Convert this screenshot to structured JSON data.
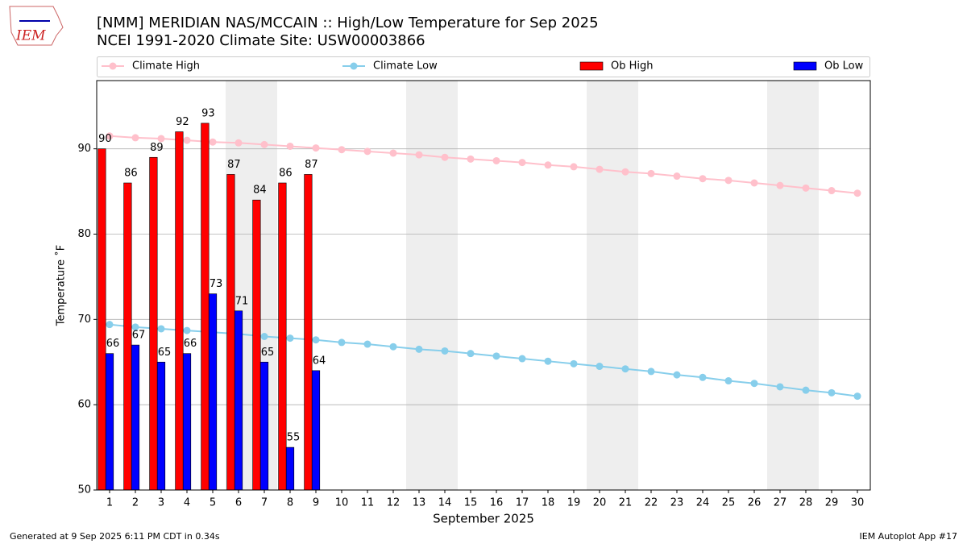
{
  "chart_data": {
    "type": "bar",
    "logo": "IEM",
    "title": "[NMM] MERIDIAN NAS/MCCAIN :: High/Low Temperature for Sep 2025",
    "subtitle": "NCEI 1991-2020 Climate Site: USW00003866",
    "xlabel": "September 2025",
    "ylabel": "Temperature ˚F",
    "footer_left": "Generated at 9 Sep 2025 6:11 PM CDT in 0.34s",
    "footer_right": "IEM Autoplot App #17",
    "x": [
      1,
      2,
      3,
      4,
      5,
      6,
      7,
      8,
      9,
      10,
      11,
      12,
      13,
      14,
      15,
      16,
      17,
      18,
      19,
      20,
      21,
      22,
      23,
      24,
      25,
      26,
      27,
      28,
      29,
      30
    ],
    "xlim": [
      0.5,
      30.5
    ],
    "xticks": [
      1,
      2,
      3,
      4,
      5,
      6,
      7,
      8,
      9,
      10,
      11,
      12,
      13,
      14,
      15,
      16,
      17,
      18,
      19,
      20,
      21,
      22,
      23,
      24,
      25,
      26,
      27,
      28,
      29,
      30
    ],
    "ylim": [
      50,
      98
    ],
    "yticks": [
      50,
      60,
      70,
      80,
      90
    ],
    "grid": true,
    "shaded_days": [
      6,
      7,
      13,
      14,
      20,
      21,
      27,
      28
    ],
    "series": [
      {
        "name": "Climate High",
        "type": "line",
        "color": "#ffc0cb",
        "values": [
          91.5,
          91.3,
          91.2,
          91.0,
          90.8,
          90.7,
          90.5,
          90.3,
          90.1,
          89.9,
          89.7,
          89.5,
          89.3,
          89.0,
          88.8,
          88.6,
          88.4,
          88.1,
          87.9,
          87.6,
          87.3,
          87.1,
          86.8,
          86.5,
          86.3,
          86.0,
          85.7,
          85.4,
          85.1,
          84.8
        ]
      },
      {
        "name": "Climate Low",
        "type": "line",
        "color": "#87ceeb",
        "values": [
          69.4,
          69.1,
          68.9,
          68.7,
          68.5,
          68.3,
          68.0,
          67.8,
          67.6,
          67.3,
          67.1,
          66.8,
          66.5,
          66.3,
          66.0,
          65.7,
          65.4,
          65.1,
          64.8,
          64.5,
          64.2,
          63.9,
          63.5,
          63.2,
          62.8,
          62.5,
          62.1,
          61.7,
          61.4,
          61.0
        ]
      },
      {
        "name": "Ob High",
        "type": "bar",
        "color": "#ff0000",
        "values": [
          90,
          86,
          89,
          92,
          93,
          87,
          84,
          86,
          87,
          null,
          null,
          null,
          null,
          null,
          null,
          null,
          null,
          null,
          null,
          null,
          null,
          null,
          null,
          null,
          null,
          null,
          null,
          null,
          null,
          null
        ]
      },
      {
        "name": "Ob Low",
        "type": "bar",
        "color": "#0000ff",
        "values": [
          66,
          67,
          65,
          66,
          73,
          71,
          65,
          55,
          64,
          null,
          null,
          null,
          null,
          null,
          null,
          null,
          null,
          null,
          null,
          null,
          null,
          null,
          null,
          null,
          null,
          null,
          null,
          null,
          null,
          null
        ]
      }
    ]
  }
}
